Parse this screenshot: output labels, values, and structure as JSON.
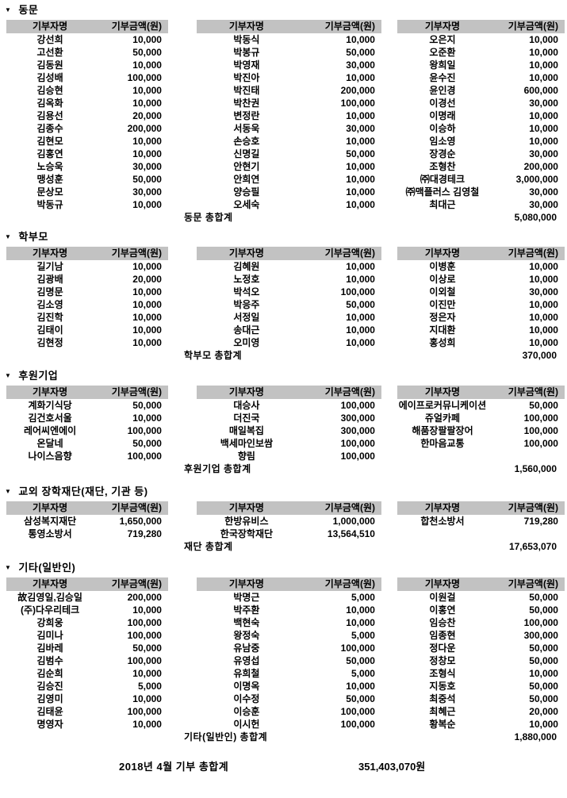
{
  "ui": {
    "collapse_icon": "▼",
    "header_name": "기부자명",
    "header_amount": "기부금액(원)"
  },
  "grand_total": {
    "label": "2018년  4월  기부  총합계",
    "value": "351,403,070원"
  },
  "sections": [
    {
      "title": "동문",
      "subtotal_label": "동문  총합계",
      "subtotal_value": "5,080,000",
      "tables": [
        [
          {
            "name": "강선희",
            "amount": "10,000"
          },
          {
            "name": "고선환",
            "amount": "50,000"
          },
          {
            "name": "김동원",
            "amount": "10,000"
          },
          {
            "name": "김성배",
            "amount": "100,000"
          },
          {
            "name": "김승현",
            "amount": "10,000"
          },
          {
            "name": "김옥화",
            "amount": "10,000"
          },
          {
            "name": "김용선",
            "amount": "20,000"
          },
          {
            "name": "김종수",
            "amount": "200,000"
          },
          {
            "name": "김현모",
            "amount": "10,000"
          },
          {
            "name": "김홍연",
            "amount": "10,000"
          },
          {
            "name": "노승욱",
            "amount": "30,000"
          },
          {
            "name": "맹성훈",
            "amount": "50,000"
          },
          {
            "name": "문상모",
            "amount": "30,000"
          },
          {
            "name": "박동규",
            "amount": "10,000"
          }
        ],
        [
          {
            "name": "박동식",
            "amount": "10,000"
          },
          {
            "name": "박봉규",
            "amount": "50,000"
          },
          {
            "name": "박영재",
            "amount": "30,000"
          },
          {
            "name": "박진아",
            "amount": "10,000"
          },
          {
            "name": "박진태",
            "amount": "200,000"
          },
          {
            "name": "박찬권",
            "amount": "100,000"
          },
          {
            "name": "변정란",
            "amount": "10,000"
          },
          {
            "name": "서동욱",
            "amount": "30,000"
          },
          {
            "name": "손승호",
            "amount": "10,000"
          },
          {
            "name": "신명길",
            "amount": "50,000"
          },
          {
            "name": "안현기",
            "amount": "10,000"
          },
          {
            "name": "안희연",
            "amount": "10,000"
          },
          {
            "name": "양승필",
            "amount": "10,000"
          },
          {
            "name": "오세숙",
            "amount": "10,000"
          }
        ],
        [
          {
            "name": "오은지",
            "amount": "10,000"
          },
          {
            "name": "오준환",
            "amount": "10,000"
          },
          {
            "name": "왕희일",
            "amount": "10,000"
          },
          {
            "name": "윤수진",
            "amount": "10,000"
          },
          {
            "name": "윤인경",
            "amount": "600,000"
          },
          {
            "name": "이경선",
            "amount": "30,000"
          },
          {
            "name": "이명래",
            "amount": "10,000"
          },
          {
            "name": "이승하",
            "amount": "10,000"
          },
          {
            "name": "임소영",
            "amount": "10,000"
          },
          {
            "name": "장경순",
            "amount": "30,000"
          },
          {
            "name": "조형찬",
            "amount": "200,000"
          },
          {
            "name": "㈜대경테크",
            "amount": "3,000,000"
          },
          {
            "name": "㈜맥플러스 김영철",
            "amount": "30,000"
          },
          {
            "name": "최대근",
            "amount": "30,000"
          }
        ]
      ]
    },
    {
      "title": "학부모",
      "subtotal_label": "학부모  총합계",
      "subtotal_value": "370,000",
      "tables": [
        [
          {
            "name": "길기남",
            "amount": "10,000"
          },
          {
            "name": "김광배",
            "amount": "20,000"
          },
          {
            "name": "김명문",
            "amount": "10,000"
          },
          {
            "name": "김소영",
            "amount": "10,000"
          },
          {
            "name": "김진학",
            "amount": "10,000"
          },
          {
            "name": "김태이",
            "amount": "10,000"
          },
          {
            "name": "김현정",
            "amount": "10,000"
          }
        ],
        [
          {
            "name": "김혜원",
            "amount": "10,000"
          },
          {
            "name": "노정호",
            "amount": "10,000"
          },
          {
            "name": "박석오",
            "amount": "100,000"
          },
          {
            "name": "박응주",
            "amount": "50,000"
          },
          {
            "name": "서정일",
            "amount": "10,000"
          },
          {
            "name": "송대근",
            "amount": "10,000"
          },
          {
            "name": "오미영",
            "amount": "10,000"
          }
        ],
        [
          {
            "name": "이병훈",
            "amount": "10,000"
          },
          {
            "name": "이상로",
            "amount": "10,000"
          },
          {
            "name": "이외철",
            "amount": "30,000"
          },
          {
            "name": "이진만",
            "amount": "10,000"
          },
          {
            "name": "정은자",
            "amount": "10,000"
          },
          {
            "name": "지대환",
            "amount": "10,000"
          },
          {
            "name": "홍성희",
            "amount": "10,000"
          }
        ]
      ]
    },
    {
      "title": "후원기업",
      "subtotal_label": "후원기업  총합계",
      "subtotal_value": "1,560,000",
      "tables": [
        [
          {
            "name": "계화기식당",
            "amount": "50,000"
          },
          {
            "name": "김건호서울",
            "amount": "10,000"
          },
          {
            "name": "레어씨엔에이",
            "amount": "100,000"
          },
          {
            "name": "온달네",
            "amount": "50,000"
          },
          {
            "name": "나이스음향",
            "amount": "100,000"
          }
        ],
        [
          {
            "name": "대승사",
            "amount": "100,000"
          },
          {
            "name": "더진국",
            "amount": "300,000"
          },
          {
            "name": "매일복집",
            "amount": "300,000"
          },
          {
            "name": "백세마인보쌈",
            "amount": "100,000"
          },
          {
            "name": "향림",
            "amount": "100,000"
          }
        ],
        [
          {
            "name": "에이프로커뮤니케이션",
            "amount": "50,000"
          },
          {
            "name": "쥬얼카페",
            "amount": "100,000"
          },
          {
            "name": "해품장팔팔장어",
            "amount": "100,000"
          },
          {
            "name": "한마음교통",
            "amount": "100,000"
          }
        ]
      ]
    },
    {
      "title": "교외 장학재단(재단, 기관 등)",
      "subtotal_label": "재단  총합계",
      "subtotal_value": "17,653,070",
      "tables": [
        [
          {
            "name": "삼성복지재단",
            "amount": "1,650,000"
          },
          {
            "name": "통영소방서",
            "amount": "719,280"
          }
        ],
        [
          {
            "name": "한방유비스",
            "amount": "1,000,000"
          },
          {
            "name": "한국장학재단",
            "amount": "13,564,510"
          }
        ],
        [
          {
            "name": "합천소방서",
            "amount": "719,280"
          }
        ]
      ]
    },
    {
      "title": "기타(일반인)",
      "subtotal_label": "기타(일반인)  총합계",
      "subtotal_value": "1,880,000",
      "tables": [
        [
          {
            "name": "故김영일,김승일",
            "amount": "200,000"
          },
          {
            "name": "(주)다우리테크",
            "amount": "10,000"
          },
          {
            "name": "강희웅",
            "amount": "100,000"
          },
          {
            "name": "김미나",
            "amount": "100,000"
          },
          {
            "name": "김바레",
            "amount": "50,000"
          },
          {
            "name": "김범수",
            "amount": "100,000"
          },
          {
            "name": "김순희",
            "amount": "10,000"
          },
          {
            "name": "김승진",
            "amount": "5,000"
          },
          {
            "name": "김영미",
            "amount": "10,000"
          },
          {
            "name": "김태윤",
            "amount": "100,000"
          },
          {
            "name": "명영자",
            "amount": "10,000"
          }
        ],
        [
          {
            "name": "박명근",
            "amount": "5,000"
          },
          {
            "name": "박주환",
            "amount": "10,000"
          },
          {
            "name": "백현숙",
            "amount": "10,000"
          },
          {
            "name": "왕정숙",
            "amount": "5,000"
          },
          {
            "name": "유남중",
            "amount": "100,000"
          },
          {
            "name": "유영섭",
            "amount": "50,000"
          },
          {
            "name": "유희철",
            "amount": "5,000"
          },
          {
            "name": "이명옥",
            "amount": "10,000"
          },
          {
            "name": "이수정",
            "amount": "50,000"
          },
          {
            "name": "이승훈",
            "amount": "100,000"
          },
          {
            "name": "이시헌",
            "amount": "100,000"
          }
        ],
        [
          {
            "name": "이원걸",
            "amount": "50,000"
          },
          {
            "name": "이홍연",
            "amount": "50,000"
          },
          {
            "name": "임승찬",
            "amount": "100,000"
          },
          {
            "name": "임종현",
            "amount": "300,000"
          },
          {
            "name": "정다운",
            "amount": "50,000"
          },
          {
            "name": "정창모",
            "amount": "50,000"
          },
          {
            "name": "조형식",
            "amount": "10,000"
          },
          {
            "name": "지동호",
            "amount": "50,000"
          },
          {
            "name": "최중석",
            "amount": "50,000"
          },
          {
            "name": "최혜근",
            "amount": "20,000"
          },
          {
            "name": "황복순",
            "amount": "10,000"
          }
        ]
      ]
    }
  ]
}
